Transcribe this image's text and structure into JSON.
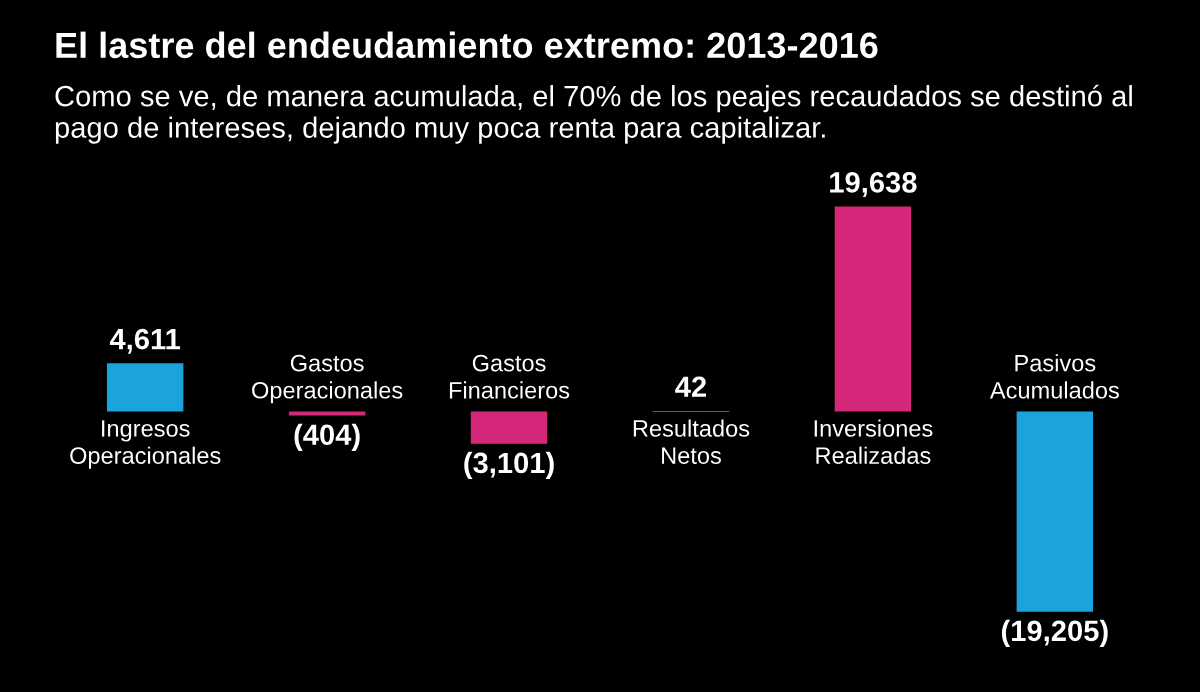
{
  "chart_data": {
    "type": "bar",
    "title": "El lastre del endeudamiento extremo: 2013-2016",
    "subtitle": "Como se ve, de manera acumulada, el 70% de los peajes recaudados se destinó al pago de intereses, dejando muy poca renta para capitalizar.",
    "categories": [
      "Ingresos\nOperacionales",
      "Gastos\nOperacionales",
      "Gastos\nFinancieros",
      "Resultados\nNetos",
      "Inversiones\nRealizadas",
      "Pasivos\nAcumulados"
    ],
    "values": [
      4611,
      -404,
      -3101,
      42,
      19638,
      -19205
    ],
    "colors": [
      "#1ba3dc",
      "#d6287a",
      "#d6287a",
      "#e8c13a",
      "#d6287a",
      "#1ba3dc"
    ],
    "value_labels": [
      "4,611",
      "(404)",
      "(3,101)",
      "42",
      "19,638",
      "(19,205)"
    ]
  }
}
